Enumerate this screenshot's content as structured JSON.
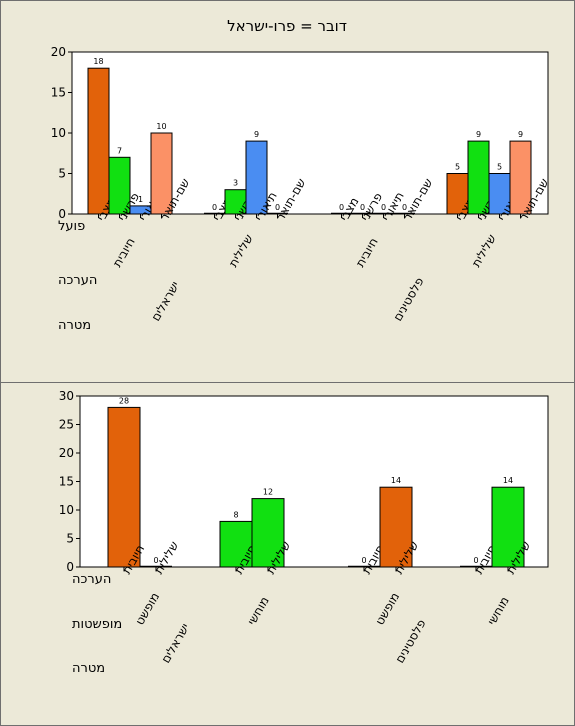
{
  "chart_data": [
    {
      "type": "bar",
      "title": "דובר = פרו-ישראל",
      "row_labels": [
        "פועל",
        "הערכה",
        "מטרה"
      ],
      "ylim": [
        0,
        20
      ],
      "yticks": [
        0,
        5,
        10,
        15,
        20
      ],
      "colors": {
        "מצבי": "#e2620a",
        "פרשני": "#11e011",
        "תיאורי": "#4a8df2",
        "שם-תואר": "#fb9166"
      },
      "groups": [
        {
          "target": "ישראלים",
          "evaluation": "חיובית",
          "bars": [
            {
              "verb": "מצבי",
              "value": 18
            },
            {
              "verb": "פרשני",
              "value": 7
            },
            {
              "verb": "תיאורי",
              "value": 1
            },
            {
              "verb": "שם-תואר",
              "value": 10
            }
          ]
        },
        {
          "target": "ישראלים",
          "evaluation": "שלילית",
          "bars": [
            {
              "verb": "מצבי",
              "value": 0
            },
            {
              "verb": "פרשני",
              "value": 3
            },
            {
              "verb": "תיאורי",
              "value": 9
            },
            {
              "verb": "שם-תואר",
              "value": 0
            }
          ]
        },
        {
          "target": "פלסטינים",
          "evaluation": "חיובית",
          "bars": [
            {
              "verb": "מצבי",
              "value": 0
            },
            {
              "verb": "פרשני",
              "value": 0
            },
            {
              "verb": "תיאורי",
              "value": 0
            },
            {
              "verb": "שם-תואר",
              "value": 0
            }
          ]
        },
        {
          "target": "פלסטינים",
          "evaluation": "שלילית",
          "bars": [
            {
              "verb": "מצבי",
              "value": 5
            },
            {
              "verb": "פרשני",
              "value": 9
            },
            {
              "verb": "תיאורי",
              "value": 5
            },
            {
              "verb": "שם-תואר",
              "value": 9
            }
          ]
        }
      ]
    },
    {
      "type": "bar",
      "row_labels": [
        "הערכה",
        "מופשטות",
        "מטרה"
      ],
      "ylim": [
        0,
        30
      ],
      "yticks": [
        0,
        5,
        10,
        15,
        20,
        25,
        30
      ],
      "colors": {
        "מופשט": "#e2620a",
        "מוחשי": "#11e011"
      },
      "groups": [
        {
          "target": "ישראלים",
          "abstraction": "מופשט",
          "bars": [
            {
              "evaluation": "חיובית",
              "value": 28
            },
            {
              "evaluation": "שלילית",
              "value": 0
            }
          ]
        },
        {
          "target": "ישראלים",
          "abstraction": "מוחשי",
          "bars": [
            {
              "evaluation": "חיובית",
              "value": 8
            },
            {
              "evaluation": "שלילית",
              "value": 12
            }
          ]
        },
        {
          "target": "פלסטינים",
          "abstraction": "מופשט",
          "bars": [
            {
              "evaluation": "חיובית",
              "value": 0
            },
            {
              "evaluation": "שלילית",
              "value": 14
            }
          ]
        },
        {
          "target": "פלסטינים",
          "abstraction": "מוחשי",
          "bars": [
            {
              "evaluation": "חיובית",
              "value": 0
            },
            {
              "evaluation": "שלילית",
              "value": 14
            }
          ]
        }
      ]
    }
  ]
}
